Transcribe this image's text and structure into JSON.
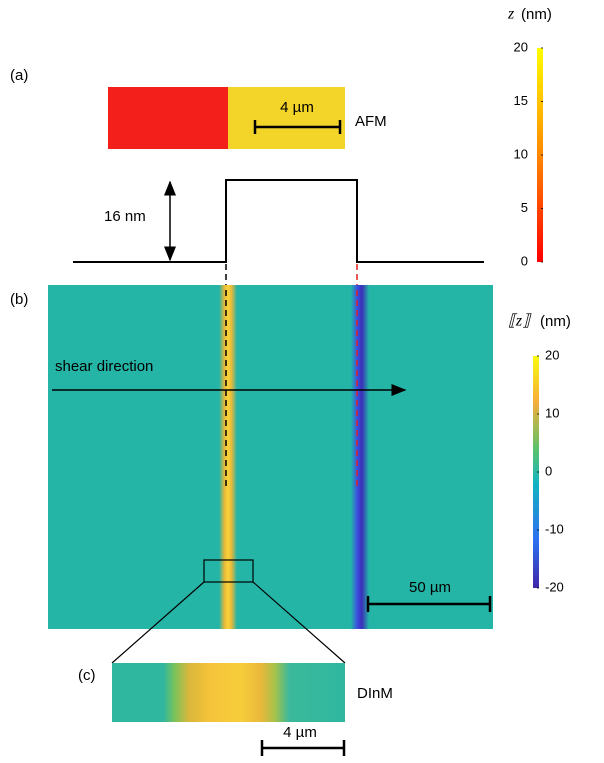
{
  "panels": {
    "a": "(a)",
    "b": "(b)",
    "c": "(c)"
  },
  "labels": {
    "afm": "AFM",
    "dinm": "DInM",
    "step_height": "16 nm",
    "shear": "shear direction",
    "scale_a": "4 µm",
    "scale_b": "50 µm",
    "scale_c": "4 µm"
  },
  "colorbars": [
    {
      "symbol": "z",
      "unit": "(nm)",
      "lim": [
        0,
        20
      ],
      "ticks": [
        0,
        5,
        10,
        15,
        20
      ]
    },
    {
      "symbol": "⟦z⟧",
      "unit": "(nm)",
      "lim": [
        -20,
        20
      ],
      "ticks": [
        -20,
        -10,
        0,
        10,
        20
      ]
    }
  ]
}
